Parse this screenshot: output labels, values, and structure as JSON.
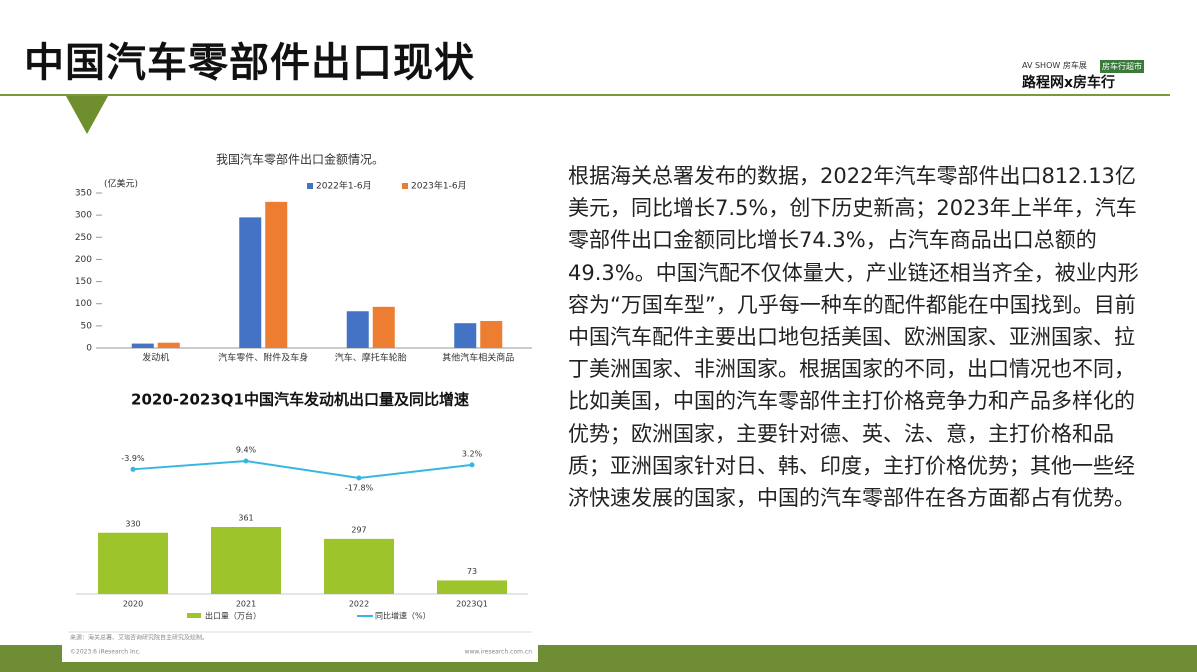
{
  "header": {
    "title": "中国汽车零部件出口现状",
    "logo_left": "AV SHOW 房车展",
    "logo_right": "房车行超市",
    "logo_caption": "路程网x房车行"
  },
  "paragraph": "根据海关总署发布的数据，2022年汽车零部件出口812.13亿美元，同比增长7.5%，创下历史新高；2023年上半年，汽车零部件出口金额同比增长74.3%，占汽车商品出口总额的49.3%。中国汽配不仅体量大，产业链还相当齐全，被业内形容为“万国车型”，几乎每一种车的配件都能在中国找到。目前中国汽车配件主要出口地包括美国、欧洲国家、亚洲国家、拉丁美洲国家、非洲国家。根据国家的不同，出口情况也不同，比如美国，中国的汽车零部件主打价格竞争力和产品多样化的优势；欧洲国家，主要针对德、英、法、意，主打价格和品质；亚洲国家针对日、韩、印度，主打价格优势；其他一些经济快速发展的国家，中国的汽车零部件在各方面都占有优势。",
  "chart_data": [
    {
      "type": "bar",
      "title": "我国汽车零部件出口金额情况。",
      "y_label": "(亿美元)",
      "categories": [
        "发动机",
        "汽车零件、附件及车身",
        "汽车、摩托车轮胎",
        "其他汽车相关商品"
      ],
      "series": [
        {
          "name": "2022年1-6月",
          "color": "#4472c4",
          "values": [
            10,
            295,
            83,
            56
          ]
        },
        {
          "name": "2023年1-6月",
          "color": "#ed7d31",
          "values": [
            12,
            330,
            93,
            61
          ]
        }
      ],
      "ylim": [
        0,
        350
      ],
      "yticks": [
        0,
        50,
        100,
        150,
        200,
        250,
        300,
        350
      ]
    },
    {
      "type": "combo",
      "title": "2020-2023Q1中国汽车发动机出口量及同比增速",
      "categories": [
        "2020",
        "2021",
        "2022",
        "2023Q1"
      ],
      "series": [
        {
          "name": "出口量（万台）",
          "type": "bar",
          "color": "#9dc42b",
          "values": [
            330,
            361,
            297,
            73
          ]
        },
        {
          "name": "同比增速（%）",
          "type": "line",
          "axis": "y2",
          "color": "#38b6e3",
          "values": [
            -3.9,
            9.4,
            -17.8,
            3.2
          ],
          "value_labels": [
            "-3.9%",
            "9.4%",
            "-17.8%",
            "3.2%"
          ]
        }
      ],
      "source": "来源：海关总署、艾瑞咨询研究院自主研究及绘制。",
      "copyright": "©2023.6 iResearch Inc.",
      "website": "www.iresearch.com.cn"
    }
  ]
}
